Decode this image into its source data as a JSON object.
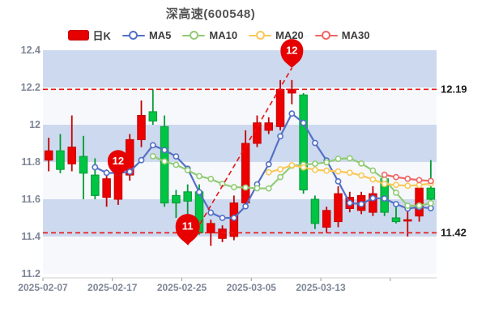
{
  "title": "深高速(600548)",
  "legend": [
    {
      "label": "日K",
      "color": "#e60000",
      "marker": "rect"
    },
    {
      "label": "MA5",
      "color": "#5470c6",
      "marker": "line-circle"
    },
    {
      "label": "MA10",
      "color": "#91cc75",
      "marker": "line-circle"
    },
    {
      "label": "MA20",
      "color": "#fac858",
      "marker": "line-circle"
    },
    {
      "label": "MA30",
      "color": "#ee6666",
      "marker": "line-circle"
    }
  ],
  "chart_data": {
    "type": "candlestick",
    "title": "深高速(600548)",
    "x_tick_labels": [
      "2025-02-07",
      "2025-02-17",
      "2025-02-25",
      "2025-03-05",
      "2025-03-13"
    ],
    "x_tick_every": 6,
    "y_tick_labels": [
      "12.4",
      "12.2",
      "12",
      "11.8",
      "11.6",
      "11.4",
      "11.2"
    ],
    "y_tick_values": [
      12.4,
      12.2,
      12.0,
      11.8,
      11.6,
      11.4,
      11.2
    ],
    "ylim": [
      11.2,
      12.4
    ],
    "grid": "striped-bands",
    "legend_position": "top",
    "up_color": "#e60000",
    "down_color": "#00bb44",
    "candles_ochl": [
      [
        11.81,
        11.86,
        11.93,
        11.75
      ],
      [
        11.86,
        11.76,
        11.95,
        11.74
      ],
      [
        11.79,
        11.88,
        12.05,
        11.75
      ],
      [
        11.83,
        11.74,
        11.94,
        11.6
      ],
      [
        11.73,
        11.62,
        11.82,
        11.6
      ],
      [
        11.61,
        11.71,
        11.76,
        11.56
      ],
      [
        11.6,
        11.75,
        11.78,
        11.57
      ],
      [
        11.73,
        11.92,
        11.95,
        11.7
      ],
      [
        11.92,
        12.05,
        12.13,
        11.88
      ],
      [
        12.07,
        12.02,
        12.19,
        12.0
      ],
      [
        11.99,
        11.58,
        12.05,
        11.56
      ],
      [
        11.62,
        11.58,
        11.65,
        11.5
      ],
      [
        11.64,
        11.59,
        11.68,
        11.47
      ],
      [
        11.64,
        11.42,
        11.68,
        11.41
      ],
      [
        11.42,
        11.47,
        11.49,
        11.35
      ],
      [
        11.39,
        11.44,
        11.46,
        11.37
      ],
      [
        11.4,
        11.58,
        11.62,
        11.38
      ],
      [
        11.58,
        11.9,
        11.97,
        11.56
      ],
      [
        11.9,
        12.01,
        12.05,
        11.88
      ],
      [
        11.97,
        12.01,
        12.04,
        11.95
      ],
      [
        11.99,
        12.19,
        12.24,
        11.97
      ],
      [
        12.17,
        12.19,
        12.24,
        12.11
      ],
      [
        12.16,
        11.65,
        12.17,
        11.63
      ],
      [
        11.6,
        11.47,
        11.62,
        11.44
      ],
      [
        11.45,
        11.54,
        11.56,
        11.42
      ],
      [
        11.48,
        11.63,
        11.67,
        11.45
      ],
      [
        11.55,
        11.61,
        11.64,
        11.53
      ],
      [
        11.54,
        11.62,
        11.64,
        11.52
      ],
      [
        11.53,
        11.63,
        11.67,
        11.51
      ],
      [
        11.71,
        11.53,
        11.72,
        11.51
      ],
      [
        11.5,
        11.48,
        11.56,
        11.47
      ],
      [
        11.49,
        11.49,
        11.56,
        11.4
      ],
      [
        11.51,
        11.66,
        11.68,
        11.48
      ],
      [
        11.66,
        11.6,
        11.81,
        11.59
      ]
    ],
    "ma_series": [
      {
        "name": "MA5",
        "period": 5,
        "color": "#5470c6"
      },
      {
        "name": "MA10",
        "period": 10,
        "color": "#91cc75"
      },
      {
        "name": "MA20",
        "period": 20,
        "color": "#fac858"
      },
      {
        "name": "MA30",
        "period": 30,
        "color": "#ee6666"
      }
    ],
    "reference_lines": [
      {
        "value": 12.19,
        "label": "12.19"
      },
      {
        "value": 11.42,
        "label": "11.42"
      }
    ],
    "markers": [
      {
        "index": 6,
        "value": 11.72,
        "label": "12",
        "r": 13
      },
      {
        "index": 12,
        "value": 11.355,
        "label": "11",
        "r": 15
      },
      {
        "index": 21,
        "value": 12.305,
        "label": "12",
        "r": 14
      }
    ],
    "trendline": {
      "from_index": 12,
      "from_value": 11.355,
      "to_index": 21,
      "to_value": 12.305
    }
  },
  "colors": {
    "band_blue": "#cdd9ee",
    "band_white": "#f6f8fc",
    "dashed_red": "#e81414",
    "axis_line": "#cccccc"
  }
}
